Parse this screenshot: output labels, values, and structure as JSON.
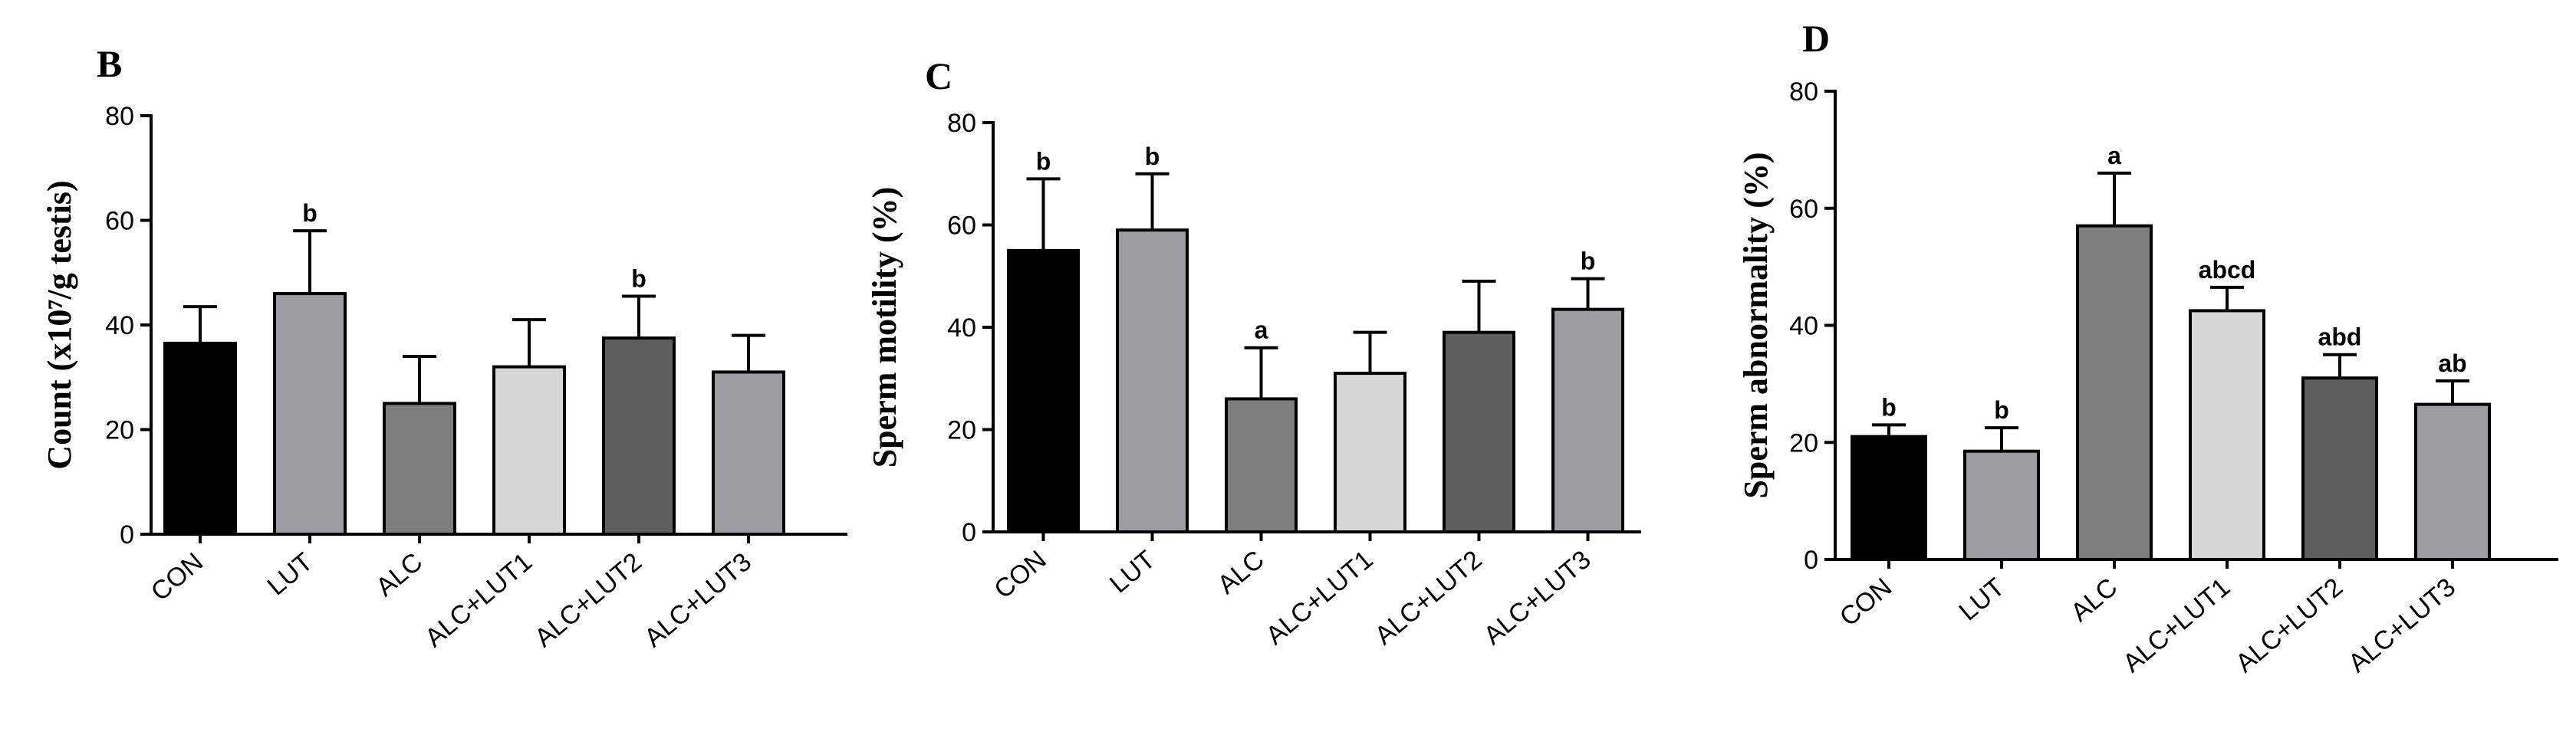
{
  "chart_data": [
    {
      "type": "bar",
      "panel": "B",
      "ylabel": "Count (x10⁷/g testis)",
      "ylim": [
        0,
        80
      ],
      "yticks": [
        0,
        20,
        40,
        60,
        80
      ],
      "categories": [
        "CON",
        "LUT",
        "ALC",
        "ALC+LUT1",
        "ALC+LUT2",
        "ALC+LUT3"
      ],
      "values": [
        36.5,
        46,
        25,
        32,
        37.5,
        31
      ],
      "errors": [
        7,
        12,
        9,
        9,
        8,
        7
      ],
      "labels": [
        "",
        "b",
        "",
        "",
        "b",
        ""
      ],
      "colors": [
        "#000000",
        "#9c9ca3",
        "#7e7e7e",
        "#d6d6d6",
        "#5f5f5f",
        "#9c9ca3"
      ]
    },
    {
      "type": "bar",
      "panel": "C",
      "ylabel": "Sperm motility (%)",
      "ylim": [
        0,
        80
      ],
      "yticks": [
        0,
        20,
        40,
        60,
        80
      ],
      "categories": [
        "CON",
        "LUT",
        "ALC",
        "ALC+LUT1",
        "ALC+LUT2",
        "ALC+LUT3"
      ],
      "values": [
        55,
        59,
        26,
        31,
        39,
        43.5
      ],
      "errors": [
        14,
        11,
        10,
        8,
        10,
        6
      ],
      "labels": [
        "b",
        "b",
        "a",
        "",
        "",
        "b"
      ],
      "colors": [
        "#000000",
        "#9c9ca3",
        "#7e7e7e",
        "#d6d6d6",
        "#5f5f5f",
        "#9c9ca3"
      ]
    },
    {
      "type": "bar",
      "panel": "D",
      "ylabel": "Sperm abnormality (%)",
      "ylim": [
        0,
        80
      ],
      "yticks": [
        0,
        20,
        40,
        60,
        80
      ],
      "categories": [
        "CON",
        "LUT",
        "ALC",
        "ALC+LUT1",
        "ALC+LUT2",
        "ALC+LUT3"
      ],
      "values": [
        21,
        18.5,
        57,
        42.5,
        31,
        26.5
      ],
      "errors": [
        2,
        4,
        9,
        4,
        4,
        4
      ],
      "labels": [
        "b",
        "b",
        "a",
        "abcd",
        "abd",
        "ab"
      ],
      "colors": [
        "#000000",
        "#9c9ca3",
        "#7e7e7e",
        "#d6d6d6",
        "#5f5f5f",
        "#9c9ca3"
      ]
    }
  ]
}
